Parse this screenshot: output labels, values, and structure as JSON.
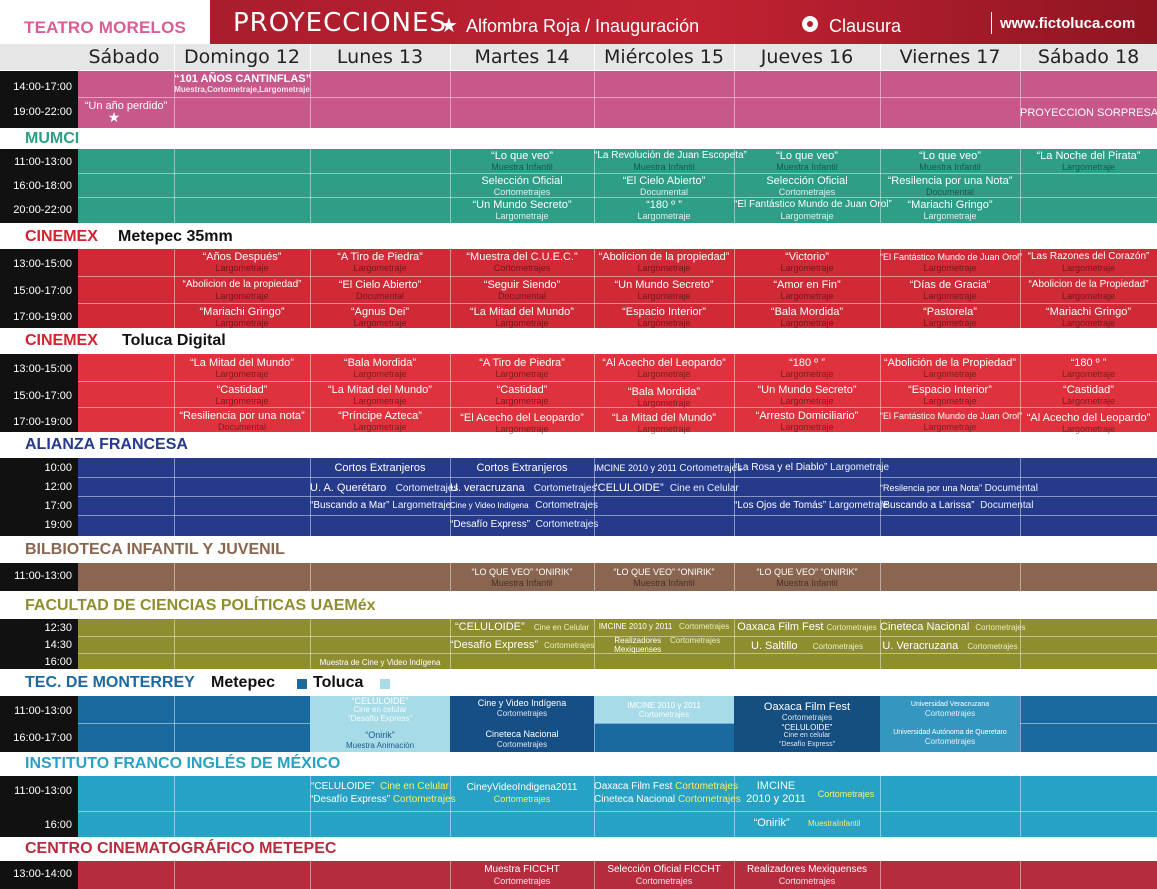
{
  "header": {
    "teatro": "TEATRO MORELOS",
    "title": "PROYECCIONES",
    "legend_star": "Alfombra Roja / Inauguración",
    "legend_circle": "Clausura",
    "site": "www.fictoluca.com"
  },
  "days": [
    "Sábado 11",
    "Domingo 12",
    "Lunes  13",
    "Martes 14",
    "Miércoles 15",
    "Jueves  16",
    "Viernes 17",
    "Sábado 18"
  ],
  "teatro": {
    "times": [
      "14:00-17:00",
      "19:00-22:00"
    ],
    "c1": "“101 AÑOS CANTINFLAS”",
    "c1sub": "Muestra,Cortometraje,Largometraje",
    "c2": "“Un año perdido”",
    "c3": "PROYECCION SORPRESA"
  },
  "mumci": {
    "title": "MUMCI",
    "times": [
      "11:00-13:00",
      "16:00-18:00",
      "20:00-22:00"
    ],
    "r1": [
      {
        "t": "“Lo que veo”",
        "s": "Muestra Infantil"
      },
      {
        "t": "“La Revolución de Juan Escopeta”",
        "s": "Muestra Infantil"
      },
      {
        "t": "“Lo que veo”",
        "s": "Muestra Infantil"
      },
      {
        "t": "“Lo que veo”",
        "s": "Muestra Infantil"
      },
      {
        "t": "“La Noche del Pirata”",
        "s": "Largometraje"
      }
    ],
    "r2": [
      {
        "t": "Selección Oficial",
        "s": "Cortometrajes"
      },
      {
        "t": "“El Cielo Abierto”",
        "s": "Documental"
      },
      {
        "t": "Selección Oficial",
        "s": "Cortometrajes"
      },
      {
        "t": "“Resilencia por una Nota”",
        "s": "Documental"
      }
    ],
    "r3": [
      {
        "t": "“Un Mundo Secreto”",
        "s": "Largometraje"
      },
      {
        "t": "“180 º ”",
        "s": "Largometraje"
      },
      {
        "t": "“El Fantástico Mundo de Juan Orol”",
        "s": "Largometraje"
      },
      {
        "t": "“Mariachi Gringo”",
        "s": "Largometraje"
      }
    ]
  },
  "cm1": {
    "title": "CINEMEX",
    "sub": "Metepec 35mm",
    "times": [
      "13:00-15:00",
      "15:00-17:00",
      "17:00-19:00"
    ],
    "r1": [
      "“Años Después”",
      "“A Tiro de Piedra”",
      "“Muestra del C.U.E.C.”",
      "“Abolicion de la propiedad”",
      "“Victorio”",
      "“El Fantástico Mundo de Juan Orol”",
      "“Las Razones del Corazón”"
    ],
    "r1s": [
      "Largometraje",
      "Largometraje",
      "Cortometrajes",
      "Largometraje",
      "Largometraje",
      "Largometraje",
      "Largometraje"
    ],
    "r2": [
      "“Abolicion de la propiedad”",
      "“El Cielo Abierto”",
      "“Seguir Siendo”",
      "“Un Mundo Secreto”",
      "“Amor en Fin”",
      "“Días de Gracia”",
      "“Abolicion de la Propiedad”"
    ],
    "r2s": [
      "Largometraje",
      "Documental",
      "Documental",
      "Largometraje",
      "Largometraje",
      "Largometraje",
      "Largometraje"
    ],
    "r3": [
      "“Mariachi Gringo”",
      "“Agnus Dei”",
      "“La Mitad del Mundo”",
      "“Espacio Interior”",
      "“Bala Mordida”",
      "“Pastorela”",
      "“Mariachi Gringo”"
    ],
    "r3s": [
      "Largometraje",
      "Largometraje",
      "Largometraje",
      "Largometraje",
      "Largometraje",
      "Largometraje",
      "Largometraje"
    ]
  },
  "cm2": {
    "title": "CINEMEX",
    "sub": "Toluca Digital",
    "times": [
      "13:00-15:00",
      "15:00-17:00",
      "17:00-19:00"
    ],
    "r1": [
      "“La Mitad del Mundo”",
      "“Bala Mordida”",
      "“A Tiro de Piedra”",
      "“Al Acecho del Leopardo”",
      "“180 º ”",
      "“Abolición de la Propiedad”",
      "“180 º ”"
    ],
    "r1s": [
      "Largometraje",
      "Largometraje",
      "Largometraje",
      "Largometraje",
      "Largometraje",
      "Largometraje",
      "Largometraje"
    ],
    "r2": [
      "“Castidad”",
      "“La Mitad del Mundo”",
      "“Castidad”",
      "“Bala Mordida”",
      "“Un Mundo Secreto”",
      "“Espacio Interior”",
      "“Castidad”"
    ],
    "r2s": [
      "Largometraje",
      "Largometraje",
      "Largometraje",
      "Largometraje",
      "Largometraje",
      "Largometraje",
      "Largometraje"
    ],
    "r3": [
      "“Resiliencia por una nota”",
      "“Príncipe Azteca”",
      "“El Acecho del Leopardo”",
      "“La Mitad del Mundo”",
      "“Arresto Domiciliario”",
      "“El Fantástico Mundo de Juan Orol”",
      "“Al Acecho del Leopardo”"
    ],
    "r3s": [
      "Documental",
      "Largometraje",
      "Largometraje",
      "Largometraje",
      "Largometraje",
      "Largometraje",
      "Largometraje"
    ]
  },
  "af": {
    "title": "ALIANZA FRANCESA",
    "times": [
      "10:00",
      "12:00",
      "17:00",
      "19:00"
    ],
    "a1": "Cortos Extranjeros",
    "a2": "Cortos Extranjeros",
    "a3": "IMCINE 2010 y 2011",
    "a3s": "Cortometrajes",
    "a4": "“La Rosa y el Diablo”",
    "a4s": "Largometraje",
    "b1": "U. A. Querétaro",
    "b1s": "Cortometrajes",
    "b2": "U. veracruzana",
    "b2s": "Cortometrajes",
    "b3": "“CELULOIDE”",
    "b3s": "Cine en Celular",
    "b4": "“Resilencia por una Nota”",
    "b4s": "Documental",
    "c1": "“Buscando a Mar”",
    "c1s": "Largometraje",
    "c2": "Cine y Video Indígena",
    "c2s": "Cortometrajes",
    "c3": "“Los Ojos de Tomás”",
    "c3s": "Largometraje",
    "c4": "“Buscando a Larissa”",
    "c4s": "Documental",
    "d1": "“Desafío Express”",
    "d1s": "Cortometrajes"
  },
  "bib": {
    "title": "BILBIOTECA INFANTIL Y JUVENIL",
    "time": "11:00-13:00",
    "t": "“LO QUE VEO”   “ONIRIK”",
    "s": "Muestra Infantil"
  },
  "fcp": {
    "title": "FACULTAD DE CIENCIAS POLÍTICAS UAEMéx",
    "times": [
      "12:30",
      "14:30",
      "16:00"
    ],
    "a1": "“CELULOIDE”",
    "a1s": "Cine en Celular",
    "a2": "IMCINE 2010 y 2011",
    "a2s": "Cortometrajes",
    "a3": "Oaxaca Film Fest",
    "a3s": "Cortometrajes",
    "a4": "Cineteca Nacional",
    "a4s": "Cortometrajes",
    "b1": "“Desafío Express”",
    "b1s": "Cortometrajes",
    "b2": "Realizadores Mexiquenses",
    "b2s": "Cortometrajes",
    "b3": "U. Saltillo",
    "b3s": "Cortometrajes",
    "b4": "U. Veracruzana",
    "b4s": "Cortometrajes",
    "c1": "Muestra de Cine y Video Indígena"
  },
  "tec": {
    "title": "TEC. DE MONTERREY",
    "sub1": "Metepec",
    "sub2": "Toluca",
    "times": [
      "11:00-13:00",
      "16:00-17:00"
    ],
    "a1": "“CELULOIDE”",
    "a1s": "Cine en celular",
    "a1t": "“Desafío Express”",
    "a2": "Cine y Video Indígena",
    "a2s": "Cortometrajes",
    "a3": "IMCINE 2010 y 2011",
    "a3s": "Cortometrajes",
    "a4": "Oaxaca Film Fest",
    "a4s": "Cortometrajes",
    "a5": "Universidad Veracruzana",
    "a5s": "Cortometrajes",
    "b1": "“Onirik”",
    "b1s": "Muestra Animación",
    "b2": "Cineteca Nacional",
    "b2s": "Cortometrajes",
    "b3": "“CELULOIDE”",
    "b3s": "Cine en celular",
    "b3t": "“Desafío Express”",
    "b4": "Universidad Autónoma de Queretaro",
    "b4s": "Cortometrajes"
  },
  "ifi": {
    "title": "INSTITUTO FRANCO INGLÉS DE MÉXICO",
    "times": [
      "11:00-13:00",
      "16:00"
    ],
    "a1": "“CELULOIDE”",
    "a1s": "Cine en Celular",
    "a1b": "“Desafío Express”",
    "a1bs": "Cortometrajes",
    "a2": "CineyVideoIndigena2011",
    "a2s": "Cortometrajes",
    "a3": "Oaxaca Film Fest",
    "a3s": "Cortometrajes",
    "a3b": "Cineteca Nacional",
    "a3bs": "Cortometrajes",
    "a4": "IMCINE",
    "a4b": "2010 y 2011",
    "a4s": "Cortometrajes",
    "b1": "“Onirik”",
    "b1s": "MuestraInfantil"
  },
  "ccm": {
    "title": "CENTRO CINEMATOGRÁFICO METEPEC",
    "time": "13:00-14:00",
    "a1": "Muestra FICCHT",
    "a1s": "Cortometrajes",
    "a2": "Selección Oficial FICCHT",
    "a2s": "Cortometrajes",
    "a3": "Realizadores Mexiquenses",
    "a3s": "Cortometrajes"
  },
  "colors": {
    "pink": "#c8578a",
    "teal": "#2e9e86",
    "red": "#cf2a35",
    "red2": "#e0323c",
    "navy": "#263a8c",
    "brown": "#8a6550",
    "olive": "#8f8e2f",
    "tec": "#1a6aa0",
    "cyan": "#27a2c4",
    "maroon": "#b72b3e"
  }
}
